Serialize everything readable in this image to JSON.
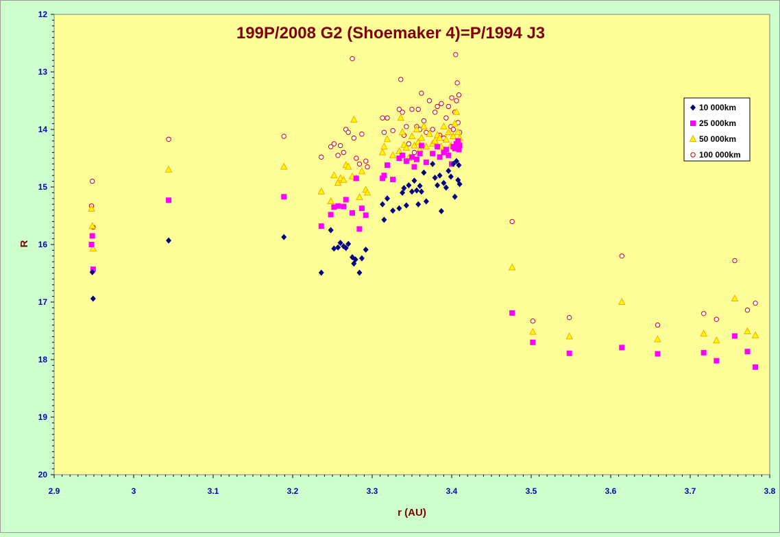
{
  "chart_data": {
    "type": "scatter",
    "title": "199P/2008 G2 (Shoemaker 4)=P/1994 J3",
    "xlabel": "r (AU)",
    "ylabel": "R",
    "xlim": [
      2.9,
      3.8
    ],
    "ylim": [
      12,
      20
    ],
    "y_inverted": true,
    "grid": false,
    "legend_position": "top-right",
    "x_ticks": [
      "2.9",
      "3",
      "3.1",
      "3.2",
      "3.3",
      "3.4",
      "3.5",
      "3.6",
      "3.7",
      "3.8"
    ],
    "y_ticks": [
      "12",
      "13",
      "14",
      "15",
      "16",
      "17",
      "18",
      "19",
      "20"
    ],
    "colors": {
      "background": "#ccffcc",
      "plot_area": "#ffff99",
      "title": "#800000",
      "ticks": "#0000cc"
    },
    "series": [
      {
        "name": "10 000km",
        "marker": "diamond",
        "color": "#000080",
        "points": [
          [
            2.948,
            16.48
          ],
          [
            2.949,
            16.94
          ],
          [
            3.044,
            15.93
          ],
          [
            3.189,
            15.87
          ],
          [
            3.236,
            16.49
          ],
          [
            3.248,
            15.75
          ],
          [
            3.252,
            16.07
          ],
          [
            3.257,
            16.05
          ],
          [
            3.26,
            15.97
          ],
          [
            3.264,
            16.03
          ],
          [
            3.267,
            16.06
          ],
          [
            3.27,
            15.99
          ],
          [
            3.275,
            16.22
          ],
          [
            3.277,
            16.33
          ],
          [
            3.279,
            16.26
          ],
          [
            3.284,
            16.49
          ],
          [
            3.287,
            16.24
          ],
          [
            3.292,
            16.09
          ],
          [
            3.313,
            15.3
          ],
          [
            3.315,
            15.57
          ],
          [
            3.319,
            15.2
          ],
          [
            3.326,
            15.41
          ],
          [
            3.334,
            15.37
          ],
          [
            3.338,
            15.1
          ],
          [
            3.34,
            15.02
          ],
          [
            3.343,
            15.32
          ],
          [
            3.346,
            14.97
          ],
          [
            3.35,
            15.08
          ],
          [
            3.353,
            14.89
          ],
          [
            3.356,
            15.06
          ],
          [
            3.358,
            15.3
          ],
          [
            3.36,
            14.98
          ],
          [
            3.362,
            15.08
          ],
          [
            3.365,
            14.75
          ],
          [
            3.368,
            15.25
          ],
          [
            3.376,
            14.6
          ],
          [
            3.379,
            14.84
          ],
          [
            3.382,
            14.97
          ],
          [
            3.385,
            14.8
          ],
          [
            3.387,
            15.42
          ],
          [
            3.39,
            14.93
          ],
          [
            3.393,
            15.01
          ],
          [
            3.396,
            14.72
          ],
          [
            3.399,
            14.82
          ],
          [
            3.402,
            14.6
          ],
          [
            3.404,
            15.17
          ],
          [
            3.406,
            14.55
          ],
          [
            3.408,
            14.88
          ],
          [
            3.409,
            14.62
          ],
          [
            3.41,
            14.95
          ]
        ]
      },
      {
        "name": "25 000km",
        "marker": "square",
        "color": "#ff00ff",
        "points": [
          [
            2.947,
            16.0
          ],
          [
            2.948,
            15.85
          ],
          [
            2.949,
            16.43
          ],
          [
            3.044,
            15.23
          ],
          [
            3.189,
            15.17
          ],
          [
            3.236,
            15.68
          ],
          [
            3.248,
            15.48
          ],
          [
            3.252,
            15.35
          ],
          [
            3.257,
            15.33
          ],
          [
            3.264,
            15.34
          ],
          [
            3.267,
            15.22
          ],
          [
            3.275,
            15.45
          ],
          [
            3.28,
            14.85
          ],
          [
            3.284,
            15.73
          ],
          [
            3.287,
            15.37
          ],
          [
            3.292,
            15.49
          ],
          [
            3.313,
            14.85
          ],
          [
            3.315,
            14.8
          ],
          [
            3.319,
            14.62
          ],
          [
            3.326,
            14.87
          ],
          [
            3.334,
            14.5
          ],
          [
            3.338,
            14.45
          ],
          [
            3.343,
            14.55
          ],
          [
            3.35,
            14.48
          ],
          [
            3.353,
            14.65
          ],
          [
            3.356,
            14.52
          ],
          [
            3.36,
            14.42
          ],
          [
            3.362,
            14.28
          ],
          [
            3.368,
            14.57
          ],
          [
            3.376,
            14.42
          ],
          [
            3.382,
            14.3
          ],
          [
            3.385,
            14.48
          ],
          [
            3.39,
            14.4
          ],
          [
            3.393,
            14.35
          ],
          [
            3.396,
            14.45
          ],
          [
            3.4,
            14.6
          ],
          [
            3.402,
            14.3
          ],
          [
            3.404,
            14.33
          ],
          [
            3.406,
            14.25
          ],
          [
            3.408,
            14.2
          ],
          [
            3.409,
            14.35
          ],
          [
            3.41,
            14.28
          ],
          [
            3.476,
            17.19
          ],
          [
            3.502,
            17.7
          ],
          [
            3.548,
            17.89
          ],
          [
            3.614,
            17.79
          ],
          [
            3.659,
            17.9
          ],
          [
            3.717,
            17.88
          ],
          [
            3.733,
            18.02
          ],
          [
            3.756,
            17.59
          ],
          [
            3.772,
            17.86
          ],
          [
            3.782,
            18.13
          ]
        ]
      },
      {
        "name": "50 000km",
        "marker": "triangle",
        "color": "#ffa500",
        "points": [
          [
            2.947,
            15.38
          ],
          [
            2.948,
            15.68
          ],
          [
            2.949,
            16.07
          ],
          [
            3.044,
            14.7
          ],
          [
            3.189,
            14.65
          ],
          [
            3.236,
            15.08
          ],
          [
            3.248,
            15.25
          ],
          [
            3.252,
            14.8
          ],
          [
            3.257,
            14.93
          ],
          [
            3.26,
            14.85
          ],
          [
            3.264,
            14.88
          ],
          [
            3.267,
            14.62
          ],
          [
            3.27,
            14.65
          ],
          [
            3.275,
            14.82
          ],
          [
            3.277,
            13.83
          ],
          [
            3.28,
            14.85
          ],
          [
            3.284,
            15.18
          ],
          [
            3.287,
            14.73
          ],
          [
            3.292,
            15.05
          ],
          [
            3.294,
            15.1
          ],
          [
            3.313,
            14.4
          ],
          [
            3.315,
            14.3
          ],
          [
            3.319,
            14.17
          ],
          [
            3.326,
            14.45
          ],
          [
            3.334,
            14.38
          ],
          [
            3.336,
            13.8
          ],
          [
            3.338,
            14.05
          ],
          [
            3.34,
            14.27
          ],
          [
            3.343,
            14.32
          ],
          [
            3.346,
            14.5
          ],
          [
            3.35,
            14.12
          ],
          [
            3.353,
            14.28
          ],
          [
            3.356,
            14.0
          ],
          [
            3.358,
            14.22
          ],
          [
            3.36,
            14.35
          ],
          [
            3.362,
            14.15
          ],
          [
            3.365,
            13.95
          ],
          [
            3.368,
            14.3
          ],
          [
            3.372,
            14.08
          ],
          [
            3.376,
            14.25
          ],
          [
            3.379,
            14.2
          ],
          [
            3.382,
            14.1
          ],
          [
            3.385,
            14.15
          ],
          [
            3.387,
            14.3
          ],
          [
            3.39,
            13.95
          ],
          [
            3.393,
            14.18
          ],
          [
            3.396,
            14.05
          ],
          [
            3.399,
            14.28
          ],
          [
            3.402,
            14.12
          ],
          [
            3.404,
            13.9
          ],
          [
            3.406,
            13.7
          ],
          [
            3.408,
            14.05
          ],
          [
            3.409,
            14.2
          ],
          [
            3.41,
            14.15
          ],
          [
            3.476,
            16.4
          ],
          [
            3.502,
            17.52
          ],
          [
            3.548,
            17.6
          ],
          [
            3.614,
            17.0
          ],
          [
            3.659,
            17.65
          ],
          [
            3.717,
            17.55
          ],
          [
            3.733,
            17.67
          ],
          [
            3.756,
            16.94
          ],
          [
            3.772,
            17.51
          ],
          [
            3.782,
            17.58
          ]
        ]
      },
      {
        "name": "100 000km",
        "marker": "circle",
        "color": "#cc0000",
        "points": [
          [
            2.947,
            15.33
          ],
          [
            2.948,
            14.9
          ],
          [
            2.949,
            15.7
          ],
          [
            3.044,
            14.17
          ],
          [
            3.189,
            14.12
          ],
          [
            3.236,
            14.48
          ],
          [
            3.248,
            14.3
          ],
          [
            3.252,
            14.25
          ],
          [
            3.257,
            14.45
          ],
          [
            3.26,
            14.28
          ],
          [
            3.264,
            14.4
          ],
          [
            3.267,
            14.0
          ],
          [
            3.27,
            14.05
          ],
          [
            3.275,
            12.77
          ],
          [
            3.277,
            14.15
          ],
          [
            3.28,
            14.5
          ],
          [
            3.284,
            14.6
          ],
          [
            3.287,
            14.08
          ],
          [
            3.292,
            14.55
          ],
          [
            3.294,
            14.65
          ],
          [
            3.313,
            13.8
          ],
          [
            3.315,
            14.05
          ],
          [
            3.319,
            13.8
          ],
          [
            3.326,
            14.02
          ],
          [
            3.334,
            13.65
          ],
          [
            3.336,
            13.13
          ],
          [
            3.338,
            13.7
          ],
          [
            3.34,
            14.1
          ],
          [
            3.343,
            13.95
          ],
          [
            3.346,
            14.25
          ],
          [
            3.35,
            13.65
          ],
          [
            3.353,
            14.4
          ],
          [
            3.356,
            13.95
          ],
          [
            3.358,
            13.65
          ],
          [
            3.36,
            14.0
          ],
          [
            3.362,
            13.37
          ],
          [
            3.365,
            13.85
          ],
          [
            3.368,
            14.05
          ],
          [
            3.372,
            13.5
          ],
          [
            3.376,
            14.0
          ],
          [
            3.379,
            13.7
          ],
          [
            3.382,
            13.6
          ],
          [
            3.385,
            14.1
          ],
          [
            3.387,
            13.55
          ],
          [
            3.39,
            14.15
          ],
          [
            3.393,
            13.8
          ],
          [
            3.396,
            13.6
          ],
          [
            3.399,
            13.95
          ],
          [
            3.4,
            13.45
          ],
          [
            3.402,
            14.0
          ],
          [
            3.404,
            13.7
          ],
          [
            3.405,
            12.7
          ],
          [
            3.406,
            13.5
          ],
          [
            3.407,
            13.19
          ],
          [
            3.408,
            13.88
          ],
          [
            3.409,
            13.4
          ],
          [
            3.41,
            14.05
          ],
          [
            3.476,
            15.6
          ],
          [
            3.502,
            17.33
          ],
          [
            3.548,
            17.27
          ],
          [
            3.614,
            16.2
          ],
          [
            3.659,
            17.4
          ],
          [
            3.717,
            17.2
          ],
          [
            3.733,
            17.3
          ],
          [
            3.756,
            16.28
          ],
          [
            3.772,
            17.14
          ],
          [
            3.782,
            17.02
          ]
        ]
      }
    ]
  }
}
